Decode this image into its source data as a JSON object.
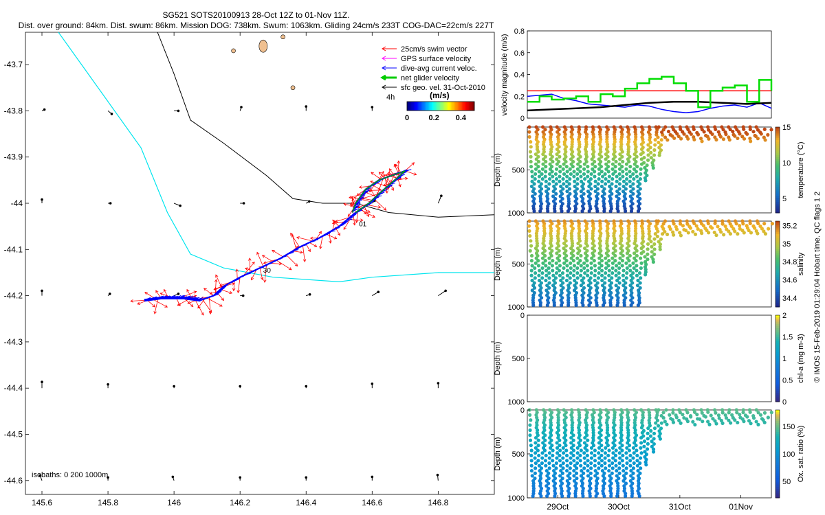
{
  "title_line1": "SG521 SOTS20100913 28-Oct 12Z to 01-Nov 11Z.",
  "title_line2": "Dist. over ground: 84km. Dist. swum: 86km. Mission DOG: 738km. Swum: 1063km. Gliding 24cm/s 233T COG-DAC=22cm/s 227T",
  "map": {
    "xlim": [
      145.55,
      146.97
    ],
    "ylim": [
      -44.63,
      -43.63
    ],
    "xticks": [
      "145.6",
      "145.8",
      "146",
      "146.2",
      "146.4",
      "146.6",
      "146.8"
    ],
    "yticks": [
      "-43.7",
      "-43.8",
      "-43.9",
      "-44",
      "-44.1",
      "-44.2",
      "-44.3",
      "-44.4",
      "-44.5",
      "-44.6"
    ],
    "legend": [
      {
        "label": "25cm/s swim vector",
        "color": "#ff0000"
      },
      {
        "label": "GPS surface velocity",
        "color": "#ff00ff"
      },
      {
        "label": "dive-avg current veloc.",
        "color": "#0000ff"
      },
      {
        "label": "net glider velocity",
        "color": "#00cc00"
      },
      {
        "label": "sfc geo. vel. 31-Oct-2010",
        "color": "#000000"
      }
    ],
    "colorbar": {
      "label": "(m/s)",
      "ticks": [
        "0",
        "0.2",
        "0.4"
      ],
      "range": [
        0,
        0.5
      ]
    },
    "marker_4h": "4h",
    "isobaths_label": "isobaths: 0   200   1000m",
    "day_labels": [
      "01",
      "30"
    ],
    "isobath_1000": [
      [
        145.65,
        -43.63
      ],
      [
        145.78,
        -43.76
      ],
      [
        145.9,
        -43.88
      ],
      [
        145.98,
        -44.02
      ],
      [
        146.05,
        -44.11
      ],
      [
        146.15,
        -44.14
      ],
      [
        146.3,
        -44.16
      ],
      [
        146.5,
        -44.17
      ],
      [
        146.6,
        -44.16
      ],
      [
        146.8,
        -44.15
      ],
      [
        146.97,
        -44.15
      ]
    ],
    "isobath_200": [
      [
        145.95,
        -43.63
      ],
      [
        146.0,
        -43.72
      ],
      [
        146.05,
        -43.82
      ],
      [
        146.15,
        -43.87
      ],
      [
        146.28,
        -43.94
      ],
      [
        146.36,
        -43.99
      ],
      [
        146.45,
        -44.0
      ],
      [
        146.55,
        -44.0
      ],
      [
        146.65,
        -44.02
      ],
      [
        146.8,
        -44.03
      ],
      [
        146.97,
        -44.025
      ]
    ],
    "track": [
      [
        145.91,
        -44.21
      ],
      [
        145.96,
        -44.205
      ],
      [
        146.03,
        -44.205
      ],
      [
        146.08,
        -44.21
      ],
      [
        146.12,
        -44.2
      ],
      [
        146.15,
        -44.18
      ],
      [
        146.2,
        -44.16
      ],
      [
        146.26,
        -44.14
      ],
      [
        146.32,
        -44.12
      ],
      [
        146.38,
        -44.095
      ],
      [
        146.44,
        -44.075
      ],
      [
        146.5,
        -44.05
      ],
      [
        146.55,
        -44.02
      ],
      [
        146.59,
        -44.0
      ],
      [
        146.62,
        -43.98
      ],
      [
        146.66,
        -43.955
      ],
      [
        146.7,
        -43.93
      ],
      [
        146.66,
        -43.94
      ],
      [
        146.62,
        -43.95
      ],
      [
        146.58,
        -43.97
      ],
      [
        146.55,
        -44.0
      ],
      [
        146.54,
        -44.02
      ]
    ],
    "geo_vectors": [
      {
        "lon": 145.6,
        "lat": -43.8,
        "u": 0.04,
        "v": 0.02
      },
      {
        "lon": 145.8,
        "lat": -43.8,
        "u": 0.06,
        "v": -0.05
      },
      {
        "lon": 146.0,
        "lat": -43.8,
        "u": 0.07,
        "v": 0.0
      },
      {
        "lon": 146.2,
        "lat": -43.8,
        "u": 0.02,
        "v": 0.06
      },
      {
        "lon": 146.4,
        "lat": -43.8,
        "u": 0.0,
        "v": 0.07
      },
      {
        "lon": 146.6,
        "lat": -43.8,
        "u": 0.0,
        "v": 0.06
      },
      {
        "lon": 145.6,
        "lat": -44.0,
        "u": 0.0,
        "v": 0.06
      },
      {
        "lon": 145.8,
        "lat": -44.0,
        "u": 0.04,
        "v": 0.0
      },
      {
        "lon": 146.0,
        "lat": -44.0,
        "u": 0.1,
        "v": -0.04
      },
      {
        "lon": 146.2,
        "lat": -44.0,
        "u": 0.06,
        "v": 0.0
      },
      {
        "lon": 146.4,
        "lat": -44.0,
        "u": 0.05,
        "v": 0.03
      },
      {
        "lon": 146.6,
        "lat": -44.0,
        "u": 0.04,
        "v": 0.04
      },
      {
        "lon": 146.8,
        "lat": -44.0,
        "u": 0.05,
        "v": 0.12
      },
      {
        "lon": 145.6,
        "lat": -44.2,
        "u": 0.0,
        "v": 0.08
      },
      {
        "lon": 145.8,
        "lat": -44.2,
        "u": 0.03,
        "v": 0.03
      },
      {
        "lon": 146.0,
        "lat": -44.2,
        "u": 0.07,
        "v": 0.03
      },
      {
        "lon": 146.2,
        "lat": -44.2,
        "u": 0.05,
        "v": 0.0
      },
      {
        "lon": 146.4,
        "lat": -44.2,
        "u": 0.06,
        "v": 0.02
      },
      {
        "lon": 146.6,
        "lat": -44.2,
        "u": 0.1,
        "v": 0.06
      },
      {
        "lon": 146.8,
        "lat": -44.2,
        "u": 0.12,
        "v": 0.08
      },
      {
        "lon": 145.6,
        "lat": -44.4,
        "u": 0.0,
        "v": 0.1
      },
      {
        "lon": 145.8,
        "lat": -44.4,
        "u": 0.0,
        "v": 0.06
      },
      {
        "lon": 146.0,
        "lat": -44.4,
        "u": 0.0,
        "v": 0.03
      },
      {
        "lon": 146.2,
        "lat": -44.4,
        "u": 0.0,
        "v": 0.03
      },
      {
        "lon": 146.4,
        "lat": -44.4,
        "u": 0.0,
        "v": 0.03
      },
      {
        "lon": 146.6,
        "lat": -44.4,
        "u": 0.0,
        "v": 0.07
      },
      {
        "lon": 146.8,
        "lat": -44.4,
        "u": 0.0,
        "v": 0.08
      },
      {
        "lon": 145.6,
        "lat": -44.6,
        "u": -0.03,
        "v": 0.08
      },
      {
        "lon": 145.8,
        "lat": -44.6,
        "u": 0.0,
        "v": 0.05
      },
      {
        "lon": 146.0,
        "lat": -44.6,
        "u": -0.02,
        "v": 0.06
      },
      {
        "lon": 146.2,
        "lat": -44.6,
        "u": 0.0,
        "v": 0.05
      },
      {
        "lon": 146.4,
        "lat": -44.6,
        "u": 0.0,
        "v": 0.05
      },
      {
        "lon": 146.6,
        "lat": -44.6,
        "u": 0.0,
        "v": 0.06
      },
      {
        "lon": 146.8,
        "lat": -44.6,
        "u": -0.01,
        "v": 0.09
      }
    ]
  },
  "velocity_panel": {
    "ylabel": "velocity magnitude (m/s)",
    "ylim": [
      0,
      0.8
    ],
    "yticks": [
      "0",
      "0.2",
      "0.4",
      "0.6",
      "0.8"
    ],
    "series": [
      {
        "name": "swim",
        "color": "#ff0000",
        "t": [
          0,
          1
        ],
        "v": [
          0.25,
          0.25
        ]
      },
      {
        "name": "dive-avg current",
        "color": "#0000ff",
        "t": [
          0.0,
          0.05,
          0.1,
          0.15,
          0.2,
          0.25,
          0.3,
          0.35,
          0.4,
          0.45,
          0.5,
          0.55,
          0.6,
          0.65,
          0.7,
          0.75,
          0.8,
          0.85,
          0.9,
          0.95,
          1.0
        ],
        "v": [
          0.2,
          0.21,
          0.22,
          0.18,
          0.16,
          0.13,
          0.12,
          0.11,
          0.1,
          0.12,
          0.11,
          0.08,
          0.06,
          0.05,
          0.06,
          0.09,
          0.11,
          0.12,
          0.1,
          0.14,
          0.09
        ]
      },
      {
        "name": "geostrophic",
        "color": "#000000",
        "t": [
          0.0,
          0.1,
          0.2,
          0.3,
          0.4,
          0.5,
          0.6,
          0.7,
          0.8,
          0.9,
          1.0
        ],
        "v": [
          0.07,
          0.08,
          0.09,
          0.1,
          0.12,
          0.14,
          0.15,
          0.15,
          0.14,
          0.13,
          0.14
        ]
      },
      {
        "name": "net glider",
        "color": "#00dd00",
        "t": [
          0.0,
          0.05,
          0.1,
          0.15,
          0.2,
          0.25,
          0.3,
          0.35,
          0.4,
          0.45,
          0.5,
          0.55,
          0.6,
          0.65,
          0.7,
          0.75,
          0.8,
          0.85,
          0.9,
          0.95,
          1.0
        ],
        "v": [
          0.15,
          0.2,
          0.17,
          0.18,
          0.2,
          0.15,
          0.22,
          0.2,
          0.27,
          0.32,
          0.36,
          0.38,
          0.32,
          0.25,
          0.1,
          0.25,
          0.28,
          0.3,
          0.15,
          0.35,
          0.25
        ]
      }
    ]
  },
  "profile_panels": [
    {
      "key": "temp",
      "ylabel": "Depth (m)",
      "cbar_label": "temperature (°C)",
      "cbar_ticks": [
        "15",
        "10",
        "5"
      ],
      "cbar_tick_pos": [
        15,
        10,
        5
      ],
      "cbar_range": [
        3,
        15
      ],
      "yticks": [
        "500",
        "1000"
      ]
    },
    {
      "key": "sal",
      "ylabel": "Depth (m)",
      "cbar_label": "salinity",
      "cbar_ticks": [
        "35.2",
        "35",
        "34.8",
        "34.6",
        "34.4"
      ],
      "cbar_tick_pos": [
        35.2,
        35,
        34.8,
        34.6,
        34.4
      ],
      "cbar_range": [
        34.3,
        35.25
      ],
      "yticks": [
        "500",
        "1000"
      ]
    },
    {
      "key": "chl",
      "ylabel": "Depth (m)",
      "cbar_label": "chl-a (mg m-3)",
      "cbar_ticks": [
        "2",
        "1.5",
        "1",
        "0.5",
        "0"
      ],
      "cbar_tick_pos": [
        2,
        1.5,
        1,
        0.5,
        0
      ],
      "cbar_range": [
        0,
        2
      ],
      "yticks": [
        "0",
        "500",
        "1000"
      ]
    },
    {
      "key": "oxy",
      "ylabel": "Depth (m)",
      "cbar_label": "Ox. sat. ratio (%)",
      "cbar_ticks": [
        "150",
        "100",
        "50"
      ],
      "cbar_tick_pos": [
        150,
        100,
        50
      ],
      "cbar_range": [
        20,
        180
      ],
      "yticks": [
        "0",
        "500",
        "1000"
      ]
    }
  ],
  "time_axis": {
    "ticks": [
      "29Oct",
      "30Oct",
      "31Oct",
      "01Nov"
    ],
    "tick_frac": [
      0.125,
      0.375,
      0.625,
      0.875
    ]
  },
  "footer_note": "© IMOS 15-Feb-2019 01:29:04 Hobart time. QC flags 1  2"
}
